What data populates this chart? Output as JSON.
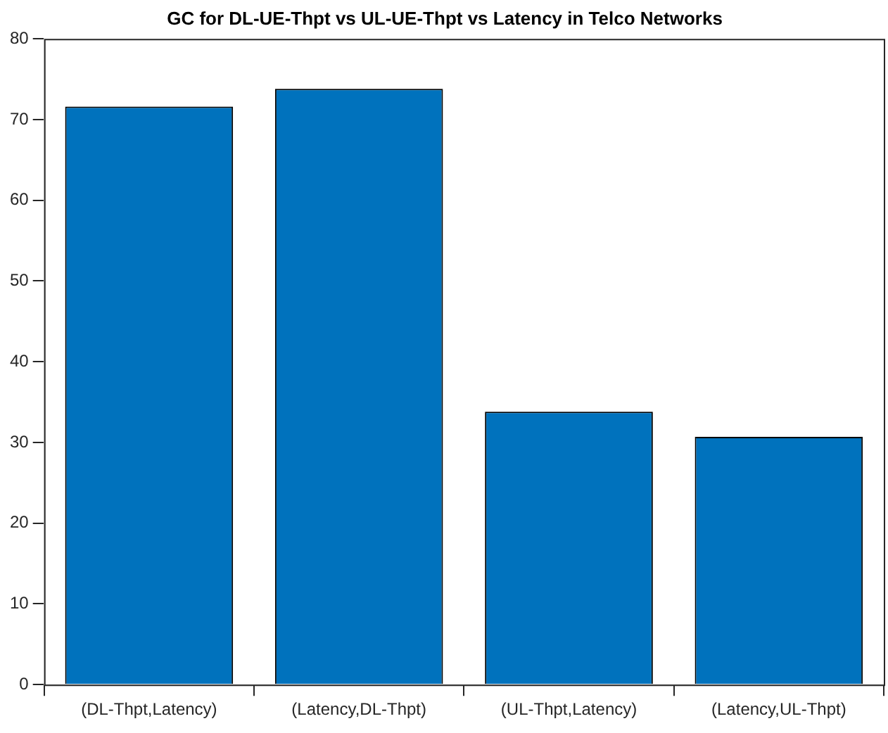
{
  "chart_data": {
    "type": "bar",
    "title": "GC for DL-UE-Thpt vs UL-UE-Thpt vs Latency in Telco Networks",
    "categories": [
      "(DL-Thpt,Latency)",
      "(Latency,DL-Thpt)",
      "(UL-Thpt,Latency)",
      "(Latency,UL-Thpt)"
    ],
    "values": [
      71.6,
      73.8,
      33.8,
      30.7
    ],
    "color": "#0072bd",
    "ylim": [
      0,
      80
    ],
    "yticks": [
      0,
      10,
      20,
      30,
      40,
      50,
      60,
      70,
      80
    ],
    "grid": false,
    "legend": false
  }
}
